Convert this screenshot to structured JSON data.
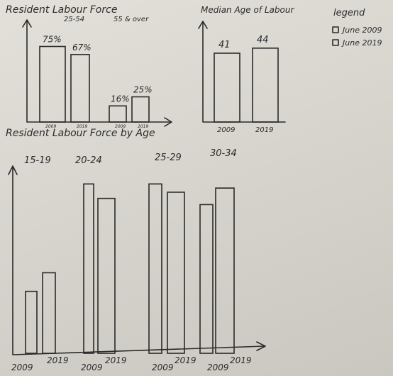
{
  "legend": {
    "title": "legend",
    "items": [
      "June 2009",
      "June 2019"
    ]
  },
  "chart_data": [
    {
      "type": "bar",
      "title": "Resident Labour Force",
      "categories": [
        "25-54",
        "55 & over"
      ],
      "series": [
        {
          "name": "June 2009",
          "values": [
            75,
            16
          ]
        },
        {
          "name": "June 2019",
          "values": [
            67,
            25
          ]
        }
      ],
      "value_labels": [
        "75%",
        "67%",
        "16%",
        "25%"
      ],
      "tick_labels": [
        "2009",
        "2019",
        "2009",
        "2019"
      ],
      "ylim": [
        0,
        100
      ]
    },
    {
      "type": "bar",
      "title": "Median Age of Labour",
      "categories": [
        "2009",
        "2019"
      ],
      "values": [
        41,
        44
      ],
      "value_labels": [
        "41",
        "44"
      ],
      "ylim": [
        0,
        60
      ]
    },
    {
      "type": "bar",
      "title": "Resident Labour Force by Age",
      "categories": [
        "15-19",
        "20-24",
        "25-29",
        "30-34"
      ],
      "series": [
        {
          "name": "June 2009",
          "values": [
            30,
            82,
            82,
            72
          ]
        },
        {
          "name": "June 2019",
          "values": [
            39,
            75,
            78,
            80
          ]
        }
      ],
      "tick_labels": [
        "2009",
        "2019",
        "2009",
        "2019",
        "2009",
        "2019",
        "2009",
        "2019"
      ],
      "ylim": [
        0,
        90
      ]
    }
  ]
}
